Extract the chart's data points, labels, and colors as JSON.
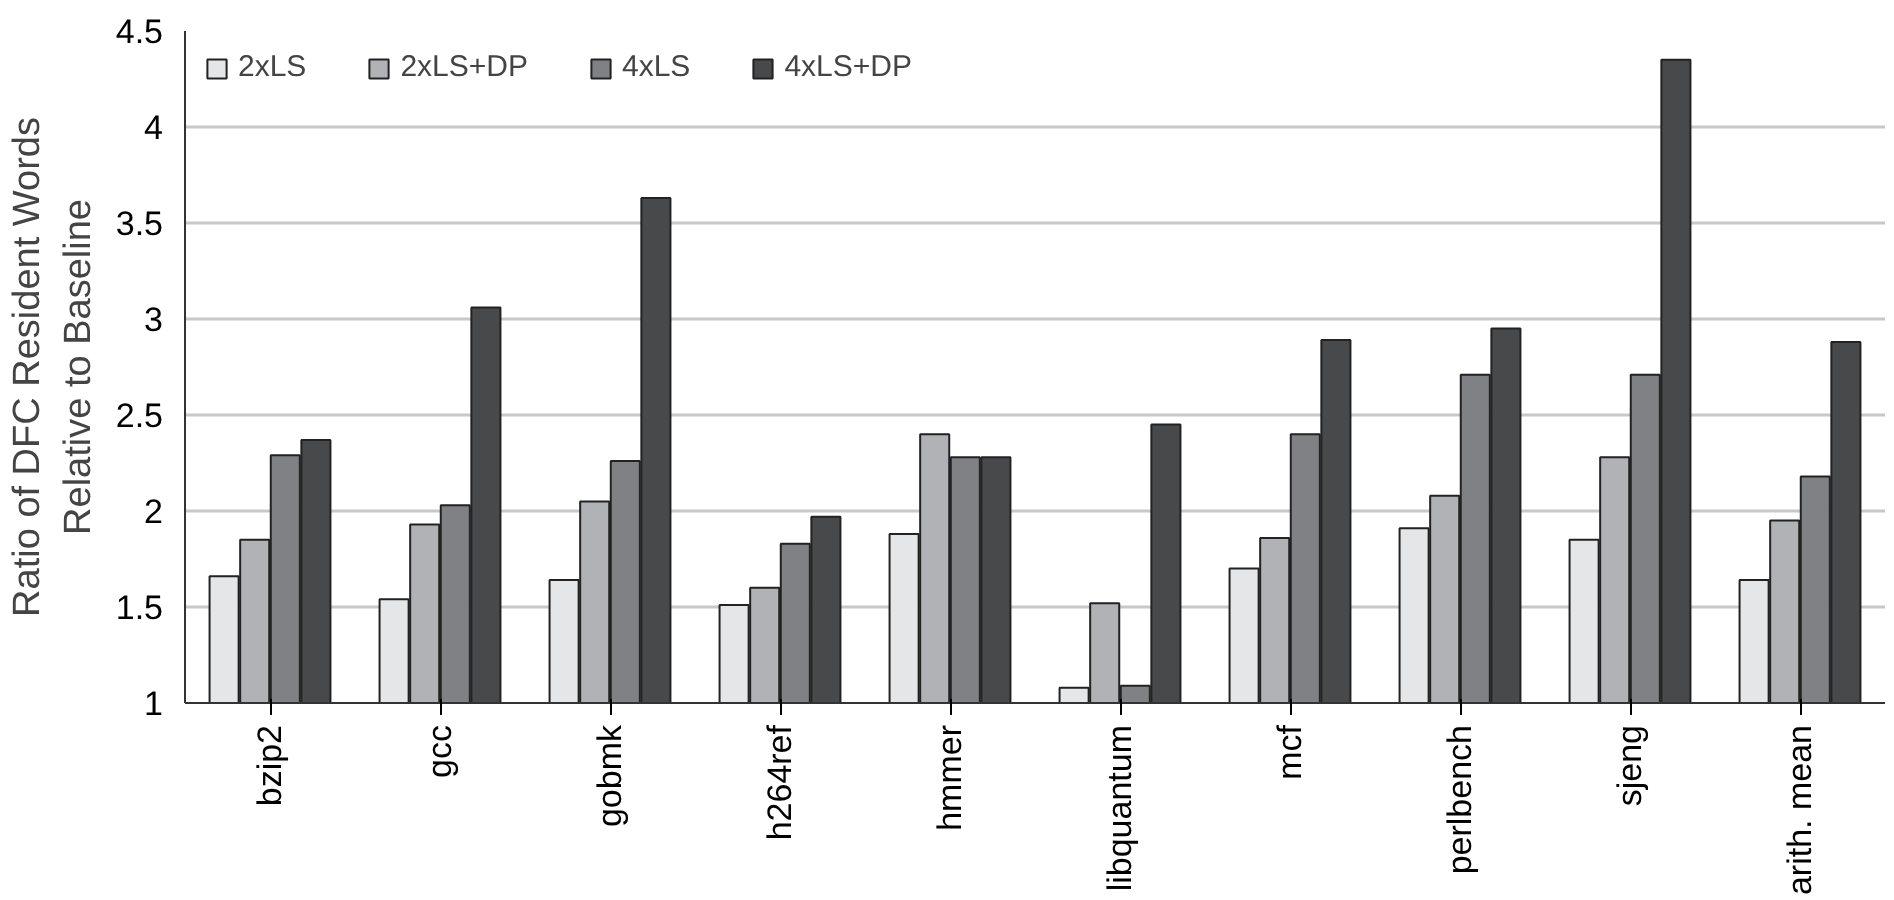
{
  "chart_data": {
    "type": "bar",
    "ylabel": "Ratio of DFC Resident Words\nRelative to Baseline",
    "categories": [
      "bzip2",
      "gcc",
      "gobmk",
      "h264ref",
      "hmmer",
      "libquantum",
      "mcf",
      "perlbench",
      "sjeng",
      "arith. mean"
    ],
    "series": [
      {
        "name": "2xLS",
        "color": "#e5e6e8",
        "values": [
          1.66,
          1.54,
          1.64,
          1.51,
          1.88,
          1.08,
          1.7,
          1.91,
          1.85,
          1.64
        ]
      },
      {
        "name": "2xLS+DP",
        "color": "#b1b2b5",
        "values": [
          1.85,
          1.93,
          2.05,
          1.6,
          2.4,
          1.52,
          1.86,
          2.08,
          2.28,
          1.95
        ]
      },
      {
        "name": "4xLS",
        "color": "#808184",
        "values": [
          2.29,
          2.03,
          2.26,
          1.83,
          2.28,
          1.09,
          2.4,
          2.71,
          2.71,
          2.18
        ]
      },
      {
        "name": "4xLS+DP",
        "color": "#48494b",
        "values": [
          2.37,
          3.06,
          3.63,
          1.97,
          2.28,
          2.45,
          2.89,
          2.95,
          4.35,
          2.88
        ]
      }
    ],
    "ylim": [
      1,
      4.5
    ],
    "yticks": [
      1,
      1.5,
      2,
      2.5,
      3,
      3.5,
      4,
      4.5
    ],
    "grid": "y",
    "legend": "top left"
  }
}
